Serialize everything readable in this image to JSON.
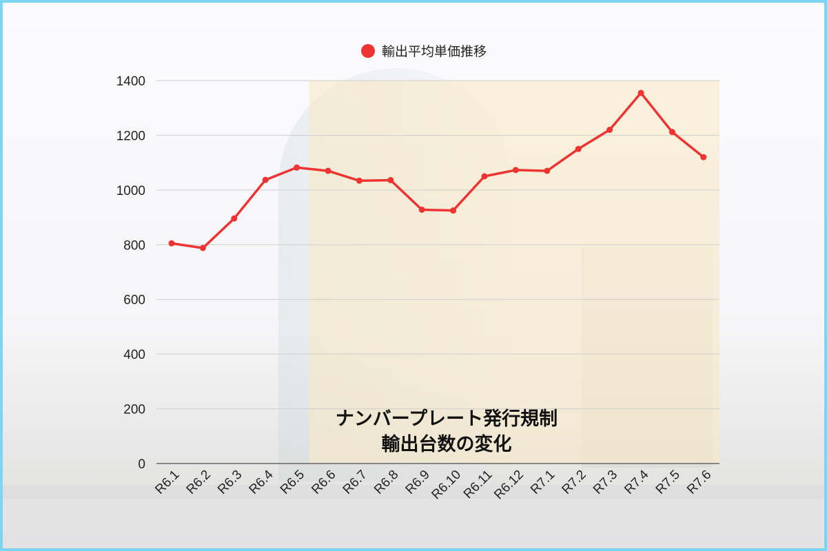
{
  "chart_data": {
    "type": "line",
    "categories": [
      "R6.1",
      "R6.2",
      "R6.3",
      "R6.4",
      "R6.5",
      "R6.6",
      "R6.7",
      "R6.8",
      "R6.9",
      "R6.10",
      "R6.11",
      "R6.12",
      "R7.1",
      "R7.2",
      "R7.3",
      "R7.4",
      "R7.5",
      "R7.6"
    ],
    "series": [
      {
        "name": "輸出平均単価推移",
        "values": [
          805,
          788,
          896,
          1037,
          1082,
          1070,
          1034,
          1036,
          928,
          925,
          1050,
          1073,
          1070,
          1150,
          1220,
          1355,
          1212,
          1120
        ],
        "color": "#ee3333"
      }
    ],
    "ylim": [
      0,
      1400
    ],
    "yticks": [
      0,
      200,
      400,
      600,
      800,
      1000,
      1200,
      1400
    ],
    "grid": true,
    "legend_position": "top-center",
    "highlight_band": {
      "from": "R6.5",
      "to": "R7.6",
      "color": "#f7e9c4"
    },
    "overlay_text": [
      "ナンバープレート発行規制",
      "輸出台数の変化"
    ],
    "title": "",
    "xlabel": "",
    "ylabel": ""
  }
}
